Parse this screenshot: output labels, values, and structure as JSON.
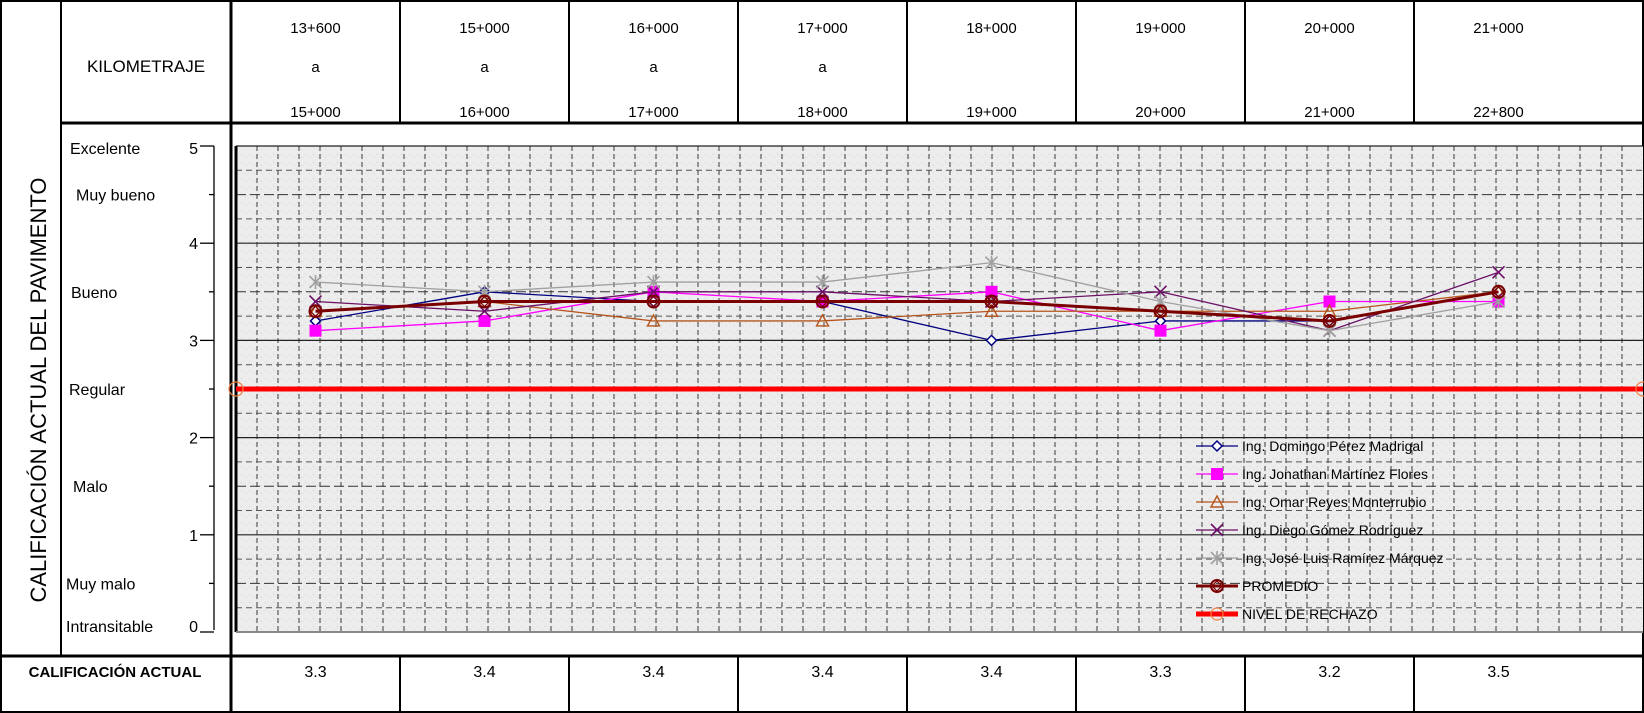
{
  "header": {
    "row_label": "KILOMETRAJE",
    "segments": [
      {
        "from": "13+600",
        "sep": "a",
        "to": "15+000"
      },
      {
        "from": "15+000",
        "sep": "a",
        "to": "16+000"
      },
      {
        "from": "16+000",
        "sep": "a",
        "to": "17+000"
      },
      {
        "from": "17+000",
        "sep": "a",
        "to": "18+000"
      },
      {
        "from": "18+000",
        "sep": "",
        "to": "19+000"
      },
      {
        "from": "19+000",
        "sep": "",
        "to": "20+000"
      },
      {
        "from": "20+000",
        "sep": "",
        "to": "21+000"
      },
      {
        "from": "21+000",
        "sep": "",
        "to": "22+800"
      }
    ]
  },
  "y_axis_title": "CALIFICACIÓN ACTUAL DEL PAVIMENTO",
  "scale": {
    "labels": [
      {
        "text": "Excelente",
        "value": 5
      },
      {
        "text": "Muy bueno",
        "value": 4.5
      },
      {
        "text": "Bueno",
        "value": 3.5
      },
      {
        "text": "Regular",
        "value": 2.5
      },
      {
        "text": "Malo",
        "value": 1.5
      },
      {
        "text": "Muy malo",
        "value": 0.5
      },
      {
        "text": "Intransitable",
        "value": 0
      }
    ],
    "ticks": [
      "0",
      "1",
      "2",
      "3",
      "4",
      "5"
    ]
  },
  "footer": {
    "label": "CALIFICACIÓN ACTUAL",
    "values": [
      "3.3",
      "3.4",
      "3.4",
      "3.4",
      "3.4",
      "3.3",
      "3.2",
      "3.5"
    ]
  },
  "chart_data": {
    "type": "line",
    "title": "",
    "xlabel": "KILOMETRAJE",
    "ylabel": "CALIFICACIÓN ACTUAL DEL PAVIMENTO",
    "categories": [
      "13+600 a 15+000",
      "15+000 a 16+000",
      "16+000 a 17+000",
      "17+000 a 18+000",
      "18+000 19+000",
      "19+000 20+000",
      "20+000 21+000",
      "21+000 22+800"
    ],
    "ylim": [
      0,
      5
    ],
    "grid": true,
    "legend_position": "bottom-right",
    "series": [
      {
        "name": "Ing. Domingo Pérez Madrigal",
        "color": "#000080",
        "marker": "diamond",
        "values": [
          3.2,
          3.5,
          3.4,
          3.4,
          3.0,
          3.2,
          3.2,
          3.5
        ]
      },
      {
        "name": "Ing. Jonathan Martínez Flores",
        "color": "#ff00ff",
        "marker": "square",
        "values": [
          3.1,
          3.2,
          3.5,
          3.4,
          3.5,
          3.1,
          3.4,
          3.4
        ]
      },
      {
        "name": "Ing. Omar Reyes Monterrubio",
        "color": "#b5541c",
        "marker": "triangle",
        "values": [
          3.3,
          3.4,
          3.2,
          3.2,
          3.3,
          3.3,
          3.3,
          3.5
        ]
      },
      {
        "name": "Ing. Diego Gómez Rodríguez",
        "color": "#6b1066",
        "marker": "x",
        "values": [
          3.4,
          3.3,
          3.5,
          3.5,
          3.4,
          3.5,
          3.1,
          3.7
        ]
      },
      {
        "name": "Ing. José Luis Ramírez Márquez",
        "color": "#a0a0a0",
        "marker": "star",
        "values": [
          3.6,
          3.5,
          3.6,
          3.6,
          3.8,
          3.4,
          3.1,
          3.4
        ]
      },
      {
        "name": "PROMEDIO",
        "color": "#7a0000",
        "marker": "circle",
        "values": [
          3.3,
          3.4,
          3.4,
          3.4,
          3.4,
          3.3,
          3.2,
          3.5
        ]
      },
      {
        "name": "NIVEL DE RECHAZO",
        "color": "#ff0000",
        "marker": "none",
        "values": [
          2.5,
          2.5,
          2.5,
          2.5,
          2.5,
          2.5,
          2.5,
          2.5
        ]
      }
    ]
  }
}
